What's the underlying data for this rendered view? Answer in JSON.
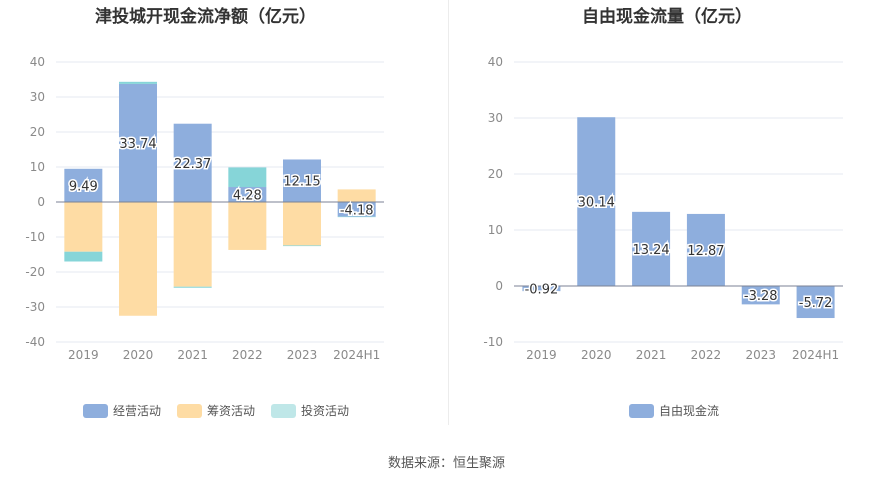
{
  "chart_data": [
    {
      "type": "bar",
      "stacked": true,
      "title": "津投城开现金流净额（亿元）",
      "categories": [
        "2019",
        "2020",
        "2021",
        "2022",
        "2023",
        "2024H1"
      ],
      "ylim": [
        -40,
        40
      ],
      "yticks": [
        40,
        30,
        20,
        10,
        0,
        -10,
        -20,
        -30,
        -40
      ],
      "series": [
        {
          "name": "经营活动",
          "color": "#8eaedd",
          "values": [
            9.49,
            33.74,
            22.37,
            4.28,
            12.15,
            -4.18
          ],
          "labels": [
            "9.49",
            "33.74",
            "22.37",
            "4.28",
            "12.15",
            "-4.18"
          ]
        },
        {
          "name": "筹资活动",
          "color": "#fedca4",
          "values": [
            -14.2,
            -32.5,
            -24.2,
            -13.7,
            -12.4,
            3.6
          ]
        },
        {
          "name": "投资活动",
          "color": "#86d5d8",
          "values": [
            -2.8,
            0.6,
            -0.3,
            5.6,
            -0.2,
            -0.1
          ]
        }
      ],
      "legend_swatch_colors": [
        "#8eaedd",
        "#fedca4",
        "#bfe7e8"
      ]
    },
    {
      "type": "bar",
      "title": "自由现金流量（亿元）",
      "categories": [
        "2019",
        "2020",
        "2021",
        "2022",
        "2023",
        "2024H1"
      ],
      "ylim": [
        -10,
        40
      ],
      "yticks": [
        40,
        30,
        20,
        10,
        0,
        -10
      ],
      "series": [
        {
          "name": "自由现金流",
          "color": "#8eaedd",
          "values": [
            -0.92,
            30.14,
            13.24,
            12.87,
            -3.28,
            -5.72
          ],
          "labels": [
            "-0.92",
            "30.14",
            "13.24",
            "12.87",
            "-3.28",
            "-5.72"
          ]
        }
      ],
      "legend_swatch_colors": [
        "#8eaedd"
      ]
    }
  ],
  "footer": {
    "source": "数据来源：恒生聚源"
  }
}
